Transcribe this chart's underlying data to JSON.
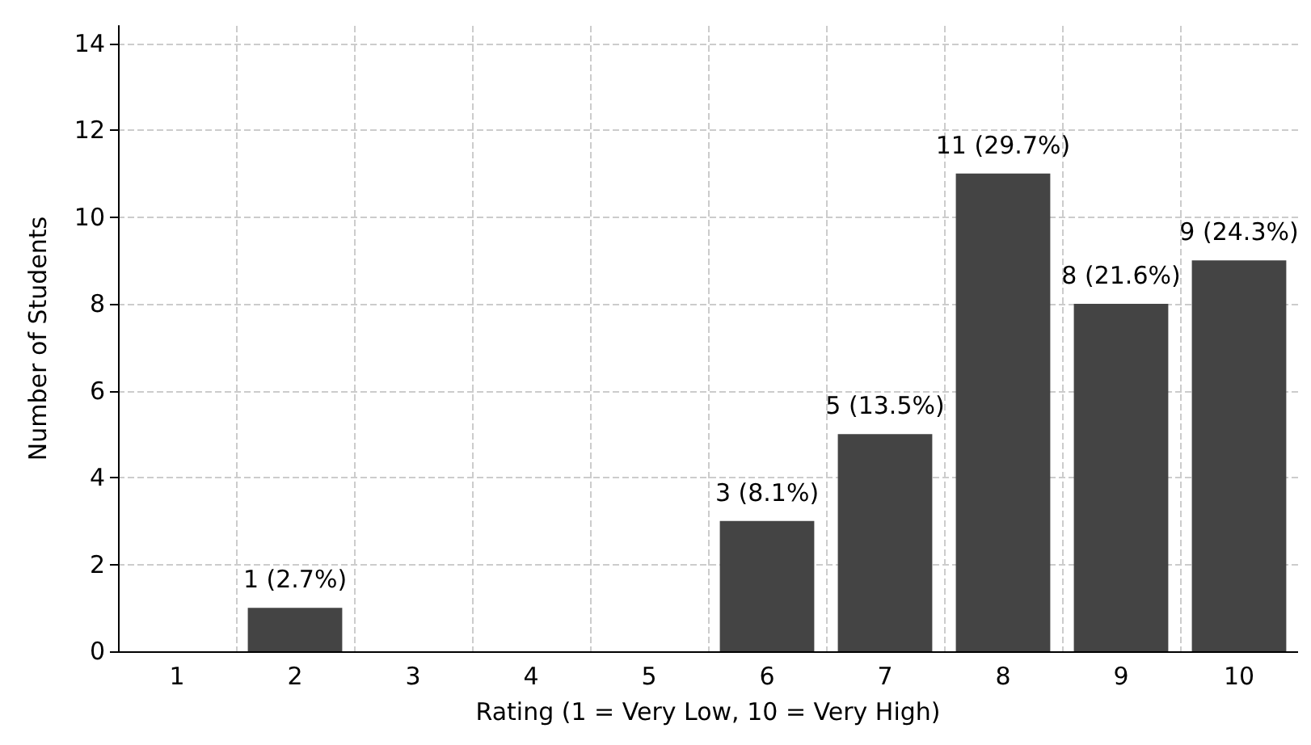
{
  "chart_data": {
    "type": "bar",
    "xlabel": "Rating (1 = Very Low, 10 = Very High)",
    "ylabel": "Number of Students",
    "categories": [
      "1",
      "2",
      "3",
      "4",
      "5",
      "6",
      "7",
      "8",
      "9",
      "10"
    ],
    "values": [
      0,
      1,
      0,
      0,
      0,
      3,
      5,
      11,
      8,
      9
    ],
    "value_labels": [
      null,
      "1 (2.7%)",
      null,
      null,
      null,
      "3 (8.1%)",
      "5 (13.5%)",
      "11 (29.7%)",
      "8 (21.6%)",
      "9 (24.3%)"
    ],
    "color": "#444444",
    "ylim": [
      0,
      14.4
    ],
    "yticks": [
      0,
      2,
      4,
      6,
      8,
      10,
      12,
      14
    ],
    "grid": true
  }
}
